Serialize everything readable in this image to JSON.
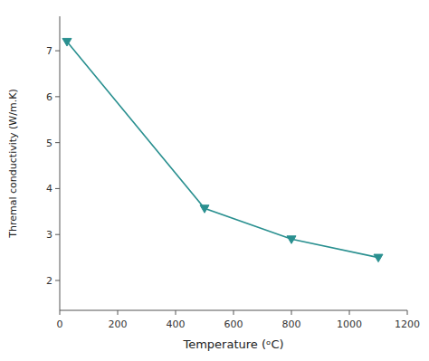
{
  "chart_data": {
    "type": "line",
    "x": [
      25,
      500,
      800,
      1100
    ],
    "values": [
      7.2,
      3.57,
      2.9,
      2.5
    ],
    "color": "#2a9090",
    "marker": "triangle-down",
    "xlabel": "Temperature (ᵒC)",
    "ylabel": "Thremal conductivity (W/m.K)",
    "xlim": [
      0,
      1200
    ],
    "ylim": [
      1.35,
      7.75
    ],
    "xticks": [
      0,
      200,
      400,
      600,
      800,
      1000,
      1200
    ],
    "yticks": [
      2,
      3,
      4,
      5,
      6,
      7
    ],
    "grid": false
  }
}
